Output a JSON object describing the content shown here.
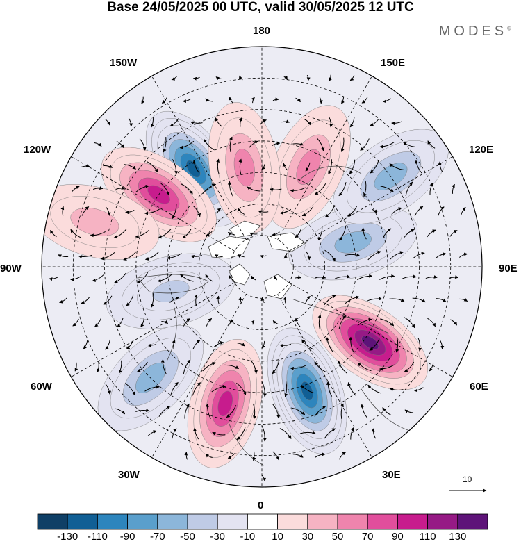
{
  "title": "Base 24/05/2025 00 UTC, valid 30/05/2025 12 UTC",
  "brand": "MODES",
  "brand_mark": "©",
  "longitude_labels": {
    "lon180": "180",
    "lon150W": "150W",
    "lon150E": "150E",
    "lon120W": "120W",
    "lon120E": "120E",
    "lon90W": "90W",
    "lon90E": "90E",
    "lon60W": "60W",
    "lon60E": "60E",
    "lon30W": "30W",
    "lon30E": "30E",
    "lon0": "0"
  },
  "vector_reference": "10",
  "colorbar": {
    "colors": [
      "#0f3f66",
      "#115f95",
      "#2d85bd",
      "#5a9fcc",
      "#8cb6da",
      "#bfcbe6",
      "#e3e3f1",
      "#ffffff",
      "#fbdcdc",
      "#f6b3c3",
      "#ef84ad",
      "#e14e9c",
      "#c71c8d",
      "#961a85",
      "#5e1379"
    ],
    "ticks": [
      "-130",
      "-110",
      "-90",
      "-70",
      "-50",
      "-30",
      "-10",
      "10",
      "30",
      "50",
      "70",
      "90",
      "110",
      "130"
    ]
  },
  "anomaly_centers": [
    {
      "type": "negative",
      "value": -130,
      "lon": -145,
      "lat": 52
    },
    {
      "type": "positive",
      "value": 90,
      "lon": -125,
      "lat": 50
    },
    {
      "type": "positive",
      "value": 40,
      "lon": -105,
      "lat": 35
    },
    {
      "type": "negative",
      "value": -50,
      "lon": -75,
      "lat": 60
    },
    {
      "type": "negative",
      "value": -60,
      "lon": -45,
      "lat": 40
    },
    {
      "type": "positive",
      "value": 90,
      "lon": -15,
      "lat": 45
    },
    {
      "type": "negative",
      "value": -130,
      "lon": 20,
      "lat": 48
    },
    {
      "type": "positive",
      "value": 130,
      "lon": 55,
      "lat": 48
    },
    {
      "type": "negative",
      "value": -60,
      "lon": 105,
      "lat": 60
    },
    {
      "type": "negative",
      "value": -60,
      "lon": 125,
      "lat": 40
    },
    {
      "type": "positive",
      "value": 50,
      "lon": 155,
      "lat": 55
    },
    {
      "type": "positive",
      "value": 50,
      "lon": -170,
      "lat": 58
    }
  ]
}
